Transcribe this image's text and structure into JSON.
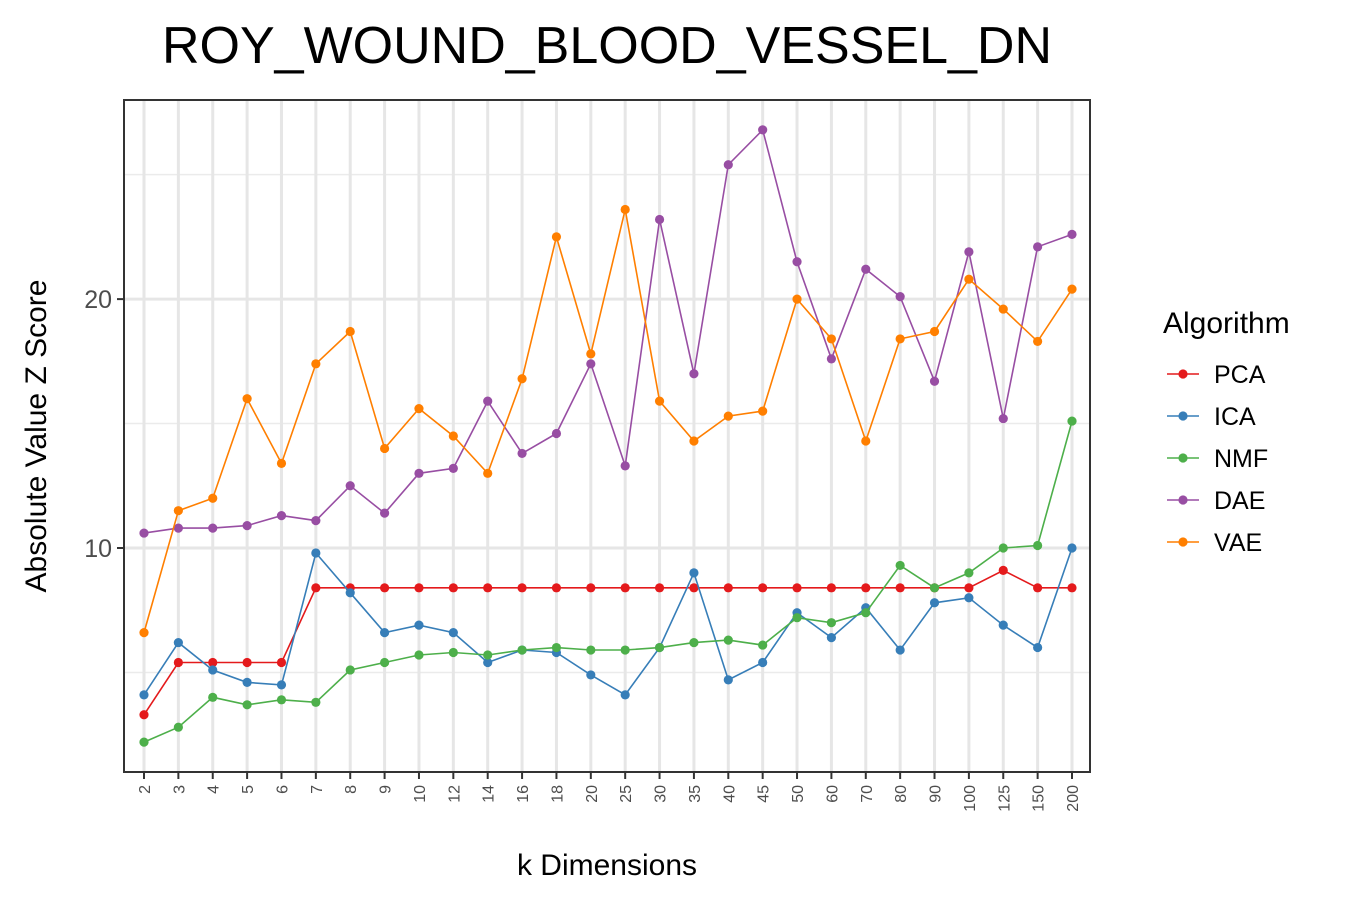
{
  "chart_data": {
    "type": "line",
    "title": "ROY_WOUND_BLOOD_VESSEL_DN",
    "xlabel": "k Dimensions",
    "ylabel": "Absolute Value Z Score",
    "categories": [
      "2",
      "3",
      "4",
      "5",
      "6",
      "7",
      "8",
      "9",
      "10",
      "12",
      "14",
      "16",
      "18",
      "20",
      "25",
      "30",
      "35",
      "40",
      "45",
      "50",
      "60",
      "70",
      "80",
      "90",
      "100",
      "125",
      "150",
      "200"
    ],
    "ylim": [
      1.0,
      28.0
    ],
    "y_ticks": [
      10,
      20
    ],
    "y_tick_labels": [
      "10",
      "20"
    ],
    "grid": true,
    "legend_position": "right",
    "legend_title": "Algorithm",
    "series": [
      {
        "name": "PCA",
        "color": "#e41a1c",
        "values": [
          3.3,
          5.4,
          5.4,
          5.4,
          5.4,
          8.4,
          8.4,
          8.4,
          8.4,
          8.4,
          8.4,
          8.4,
          8.4,
          8.4,
          8.4,
          8.4,
          8.4,
          8.4,
          8.4,
          8.4,
          8.4,
          8.4,
          8.4,
          8.4,
          8.4,
          9.1,
          8.4,
          8.4
        ]
      },
      {
        "name": "ICA",
        "color": "#377eb8",
        "values": [
          4.1,
          6.2,
          5.1,
          4.6,
          4.5,
          9.8,
          8.2,
          6.6,
          6.9,
          6.6,
          5.4,
          5.9,
          5.8,
          4.9,
          4.1,
          6.0,
          9.0,
          4.7,
          5.4,
          7.4,
          6.4,
          7.6,
          5.9,
          7.8,
          8.0,
          6.9,
          6.0,
          10.0
        ]
      },
      {
        "name": "NMF",
        "color": "#4daf4a",
        "values": [
          2.2,
          2.8,
          4.0,
          3.7,
          3.9,
          3.8,
          5.1,
          5.4,
          5.7,
          5.8,
          5.7,
          5.9,
          6.0,
          5.9,
          5.9,
          6.0,
          6.2,
          6.3,
          6.1,
          7.2,
          7.0,
          7.4,
          9.3,
          8.4,
          9.0,
          10.0,
          10.1,
          15.1
        ]
      },
      {
        "name": "DAE",
        "color": "#984ea3",
        "values": [
          10.6,
          10.8,
          10.8,
          10.9,
          11.3,
          11.1,
          12.5,
          11.4,
          13.0,
          13.2,
          15.9,
          13.8,
          14.6,
          17.4,
          13.3,
          23.2,
          17.0,
          25.4,
          26.8,
          21.5,
          17.6,
          21.2,
          20.1,
          16.7,
          21.9,
          15.2,
          22.1,
          22.6
        ]
      },
      {
        "name": "VAE",
        "color": "#ff7f00",
        "values": [
          6.6,
          11.5,
          12.0,
          16.0,
          13.4,
          17.4,
          18.7,
          14.0,
          15.6,
          14.5,
          13.0,
          16.8,
          22.5,
          17.8,
          23.6,
          15.9,
          14.3,
          15.3,
          15.5,
          20.0,
          18.4,
          14.3,
          18.4,
          18.7,
          20.8,
          19.6,
          18.3,
          20.4
        ]
      }
    ]
  }
}
